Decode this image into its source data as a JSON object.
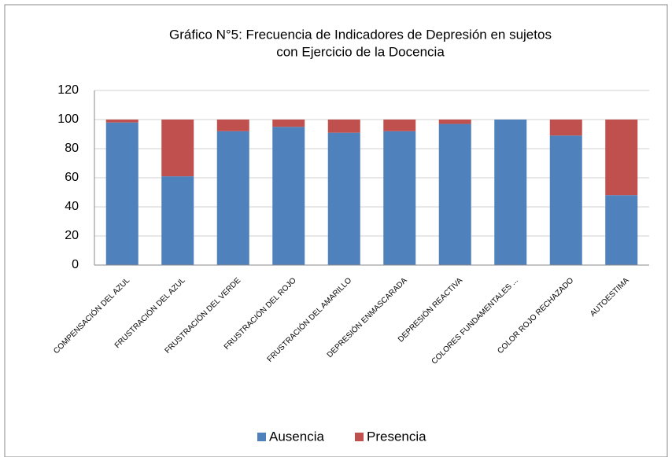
{
  "chart_data": {
    "type": "stacked_bar",
    "title": [
      "Gráfico N°5: Frecuencia de Indicadores de Depresión en sujetos",
      "con Ejercicio de la Docencia"
    ],
    "categories": [
      "COMPENSACIÓN DEL AZUL",
      "FRUSTRACIÓN DEL AZUL",
      "FRUSTRACIÓN DEL VERDE",
      "FRUSTRACIÓN DEL ROJO",
      "FRUSTRACIÓN DEL AMARILLO",
      "DEPRESIÓN ENMASCARADA",
      "DEPRESIÓN REACTIVA",
      "COLORES FUNDAMENTALES ...",
      "COLOR ROJO RECHAZADO",
      "AUTOESTIMA"
    ],
    "series": [
      {
        "name": "Ausencia",
        "color": "#4f81bd",
        "values": [
          98,
          61,
          92,
          95,
          91,
          92,
          97,
          100,
          89,
          48
        ]
      },
      {
        "name": "Presencia",
        "color": "#c0504d",
        "values": [
          2,
          39,
          8,
          5,
          9,
          8,
          3,
          0,
          11,
          52
        ]
      }
    ],
    "ylim": [
      0,
      120
    ],
    "yticks": [
      0,
      20,
      40,
      60,
      80,
      100,
      120
    ],
    "grid": true,
    "legend": "bottom"
  }
}
